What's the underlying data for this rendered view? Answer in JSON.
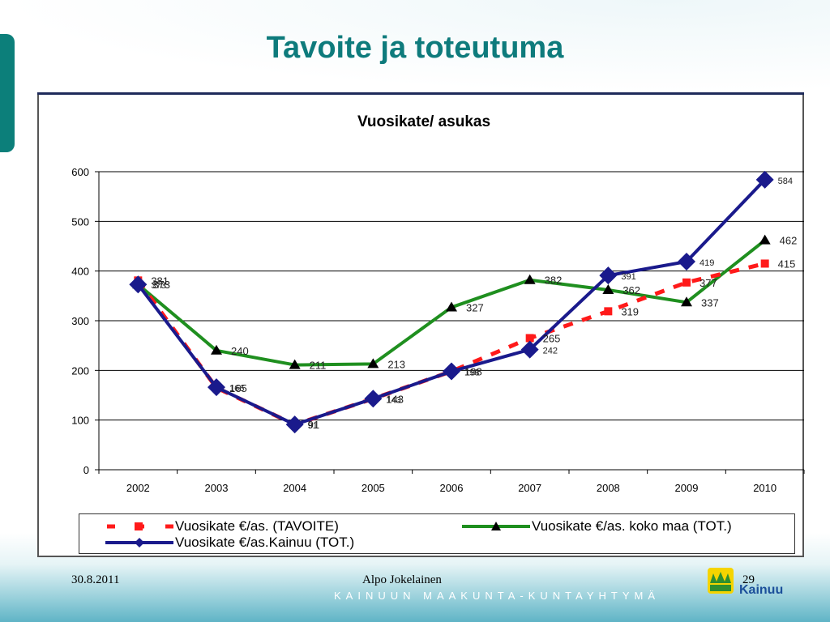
{
  "slide": {
    "title": "Tavoite ja toteutuma",
    "footer_date": "30.8.2011",
    "footer_author": "Alpo Jokelainen",
    "footer_page": "29",
    "footer_brand": "KAINUUN MAAKUNTA-KUNTAYHTYMÄ",
    "logo_text": "Kainuu"
  },
  "chart_data": {
    "type": "line",
    "title": "Vuosikate/ asukas",
    "x": [
      "2002",
      "2003",
      "2004",
      "2005",
      "2006",
      "2007",
      "2008",
      "2009",
      "2010"
    ],
    "ylim": [
      0,
      600
    ],
    "yticks": [
      0,
      100,
      200,
      300,
      400,
      500,
      600
    ],
    "grid": true,
    "legend_position": "bottom",
    "series": [
      {
        "name": "Vuosikate €/as. (TAVOITE)",
        "values": [
          381,
          165,
          91,
          143,
          198,
          265,
          319,
          377,
          415
        ],
        "color": "#ff1a1a",
        "style": "dashed-square"
      },
      {
        "name": "Vuosikate €/as. koko maa (TOT.)",
        "values": [
          373,
          240,
          211,
          213,
          327,
          382,
          362,
          337,
          462
        ],
        "color": "#1f8f1f",
        "style": "triangle"
      },
      {
        "name": "Vuosikate €/as.Kainuu (TOT.)",
        "values": [
          373,
          166,
          91,
          143,
          198,
          242,
          391,
          419,
          584
        ],
        "color": "#1a1a8c",
        "style": "diamond"
      }
    ]
  },
  "colors": {
    "title": "#0e7b7c",
    "accent": "#0c7f7a"
  }
}
